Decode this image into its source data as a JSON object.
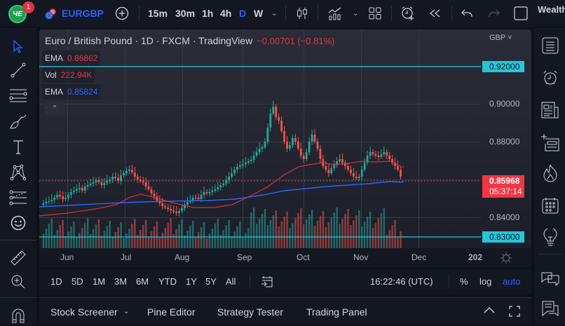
{
  "topbar": {
    "logo_text": "ЧE",
    "notification_count": "1",
    "symbol": "EURGBP",
    "intervals": [
      {
        "label": "15m",
        "active": false
      },
      {
        "label": "30m",
        "active": false
      },
      {
        "label": "1h",
        "active": false
      },
      {
        "label": "4h",
        "active": false
      },
      {
        "label": "D",
        "active": true
      },
      {
        "label": "W",
        "active": false
      }
    ],
    "right_label": "Wealth"
  },
  "chart": {
    "title": "Euro / British Pound · 1D · FXCM · TradingView",
    "change": "−0.00701 (−0.81%)",
    "indicators": [
      {
        "name": "EMA",
        "value": "0.86862",
        "color": "#e2333f"
      },
      {
        "name": "Vol",
        "value": "222.94K",
        "color": "#e2333f"
      },
      {
        "name": "EMA",
        "value": "0.85824",
        "color": "#2962ff"
      }
    ],
    "collapse_icon": "chevron-up-icon"
  },
  "price_scale": {
    "currency": "GBP ˅",
    "labels": [
      "0.90000",
      "0.88000",
      "0.84000"
    ],
    "tags": {
      "upper_line": "0.92000",
      "lower_line": "0.83000",
      "last_price": "0.85968",
      "countdown": "05:37:14"
    }
  },
  "time_axis": {
    "labels": [
      "Jun",
      "Jul",
      "Aug",
      "Sep",
      "Oct",
      "Nov",
      "Dec",
      "202"
    ]
  },
  "range_bar": {
    "ranges": [
      "1D",
      "5D",
      "1M",
      "3M",
      "6M",
      "YTD",
      "1Y",
      "5Y",
      "All"
    ],
    "clock": "16:22:46 (UTC)",
    "percent": "%",
    "log": "log",
    "auto": "auto"
  },
  "bottom_panel": {
    "tabs": [
      "Stock Screener",
      "Pine Editor",
      "Strategy Tester",
      "Trading Panel"
    ]
  },
  "colors": {
    "up": "#26a69a",
    "down": "#ef5350",
    "ema_fast": "#e2333f",
    "ema_slow": "#2962ff",
    "hline": "#26c6da",
    "accent": "#2962ff"
  }
}
